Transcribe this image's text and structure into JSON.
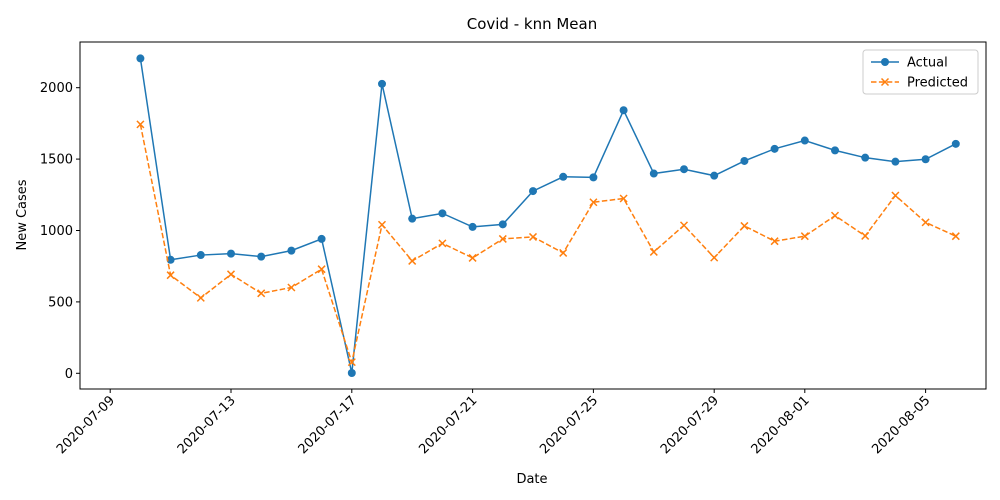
{
  "chart_data": {
    "type": "line",
    "title": "Covid - knn Mean",
    "xlabel": "Date",
    "ylabel": "New Cases",
    "x": [
      "2020-07-10",
      "2020-07-11",
      "2020-07-12",
      "2020-07-13",
      "2020-07-14",
      "2020-07-15",
      "2020-07-16",
      "2020-07-17",
      "2020-07-18",
      "2020-07-19",
      "2020-07-20",
      "2020-07-21",
      "2020-07-22",
      "2020-07-23",
      "2020-07-24",
      "2020-07-25",
      "2020-07-26",
      "2020-07-27",
      "2020-07-28",
      "2020-07-29",
      "2020-07-30",
      "2020-07-31",
      "2020-08-01",
      "2020-08-02",
      "2020-08-03",
      "2020-08-04",
      "2020-08-05",
      "2020-08-06"
    ],
    "series": [
      {
        "name": "Actual",
        "color": "#1f77b4",
        "marker": "circle",
        "linestyle": "solid",
        "values": [
          2205,
          795,
          828,
          838,
          817,
          859,
          941,
          2,
          2027,
          1083,
          1120,
          1025,
          1043,
          1276,
          1376,
          1372,
          1842,
          1399,
          1429,
          1384,
          1487,
          1572,
          1630,
          1561,
          1510,
          1482,
          1499,
          1607
        ]
      },
      {
        "name": "Predicted",
        "color": "#ff7f0e",
        "marker": "x",
        "linestyle": "dashed",
        "values": [
          1743,
          687,
          528,
          693,
          560,
          601,
          729,
          78,
          1040,
          787,
          910,
          808,
          941,
          955,
          843,
          1198,
          1224,
          850,
          1036,
          810,
          1032,
          925,
          960,
          1104,
          962,
          1245,
          1057,
          960
        ]
      }
    ],
    "xticks": [
      "2020-07-09",
      "2020-07-13",
      "2020-07-17",
      "2020-07-21",
      "2020-07-25",
      "2020-07-29",
      "2020-08-01",
      "2020-08-05"
    ],
    "yticks": [
      0,
      500,
      1000,
      1500,
      2000
    ],
    "xlim": [
      "2020-07-08",
      "2020-08-07"
    ],
    "ylim": [
      -110,
      2320
    ],
    "legend_position": "top-right",
    "grid": false
  }
}
